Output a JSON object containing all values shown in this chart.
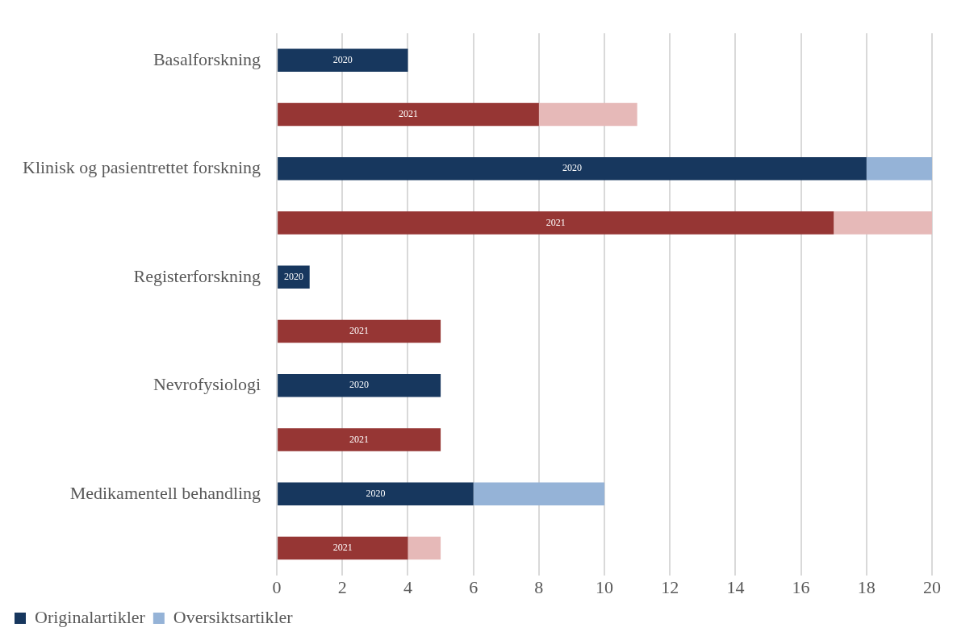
{
  "chart_data": {
    "type": "bar",
    "orientation": "horizontal",
    "stacked": true,
    "categories": [
      "Basalforskning",
      null,
      "Klinisk og pasientrettet forskning",
      null,
      "Registerforskning",
      null,
      "Nevrofysiologi",
      null,
      "Medikamentell behandling",
      null
    ],
    "series": [
      {
        "name": "Originalartikler",
        "color": "#17375e",
        "colors": [
          "#17375e",
          "#963634",
          "#17375e",
          "#963634",
          "#17375e",
          "#963634",
          "#17375e",
          "#963634",
          "#17375e",
          "#963634"
        ],
        "values": [
          4,
          8,
          18,
          17,
          1,
          5,
          5,
          5,
          6,
          4
        ]
      },
      {
        "name": "Oversiktsartikler",
        "color": "#95b3d7",
        "colors": [
          "#95b3d7",
          "#e6b9b8",
          "#95b3d7",
          "#e6b9b8",
          "#95b3d7",
          "#e6b9b8",
          "#95b3d7",
          "#e6b9b8",
          "#95b3d7",
          "#e6b9b8"
        ],
        "values": [
          null,
          3,
          2,
          3,
          null,
          null,
          null,
          null,
          4,
          1
        ]
      }
    ],
    "xlim": [
      0,
      20
    ],
    "xticks": [
      0,
      2,
      4,
      6,
      8,
      10,
      12,
      14,
      16,
      18,
      20
    ],
    "grid": "x",
    "legend": "bottom left",
    "annotations": [
      "2020",
      "2021",
      "2020",
      "2021",
      "2020",
      "2021",
      "2020",
      "2021",
      "2020",
      "2021"
    ]
  }
}
